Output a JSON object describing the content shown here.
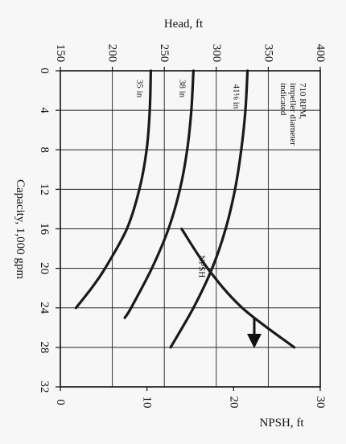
{
  "chart_data": {
    "type": "line",
    "head_axis": {
      "label": "Head, ft",
      "range": [
        150,
        400
      ],
      "ticks": [
        "150",
        "200",
        "250",
        "300",
        "350",
        "400"
      ]
    },
    "npsh_axis": {
      "label": "NPSH, ft",
      "range": [
        0,
        30
      ],
      "ticks": [
        "0",
        "10",
        "20",
        "30"
      ]
    },
    "capacity_axis": {
      "label": "Capacity, 1,000 gpm",
      "range": [
        0,
        32
      ],
      "ticks": [
        "0",
        "4",
        "8",
        "12",
        "16",
        "20",
        "24",
        "28",
        "32"
      ]
    },
    "annotation": [
      "710 RPM,",
      "impeller diameter",
      "indicated"
    ],
    "series": [
      {
        "name": "35 in",
        "axis": "head",
        "x": [
          0,
          4,
          8,
          12,
          16,
          20,
          22,
          24
        ],
        "y": [
          237,
          236,
          233,
          226,
          214,
          193,
          180,
          165
        ]
      },
      {
        "name": "38 in",
        "axis": "head",
        "x": [
          0,
          4,
          8,
          12,
          16,
          20,
          24,
          25
        ],
        "y": [
          278,
          276,
          272,
          265,
          254,
          238,
          218,
          212
        ]
      },
      {
        "name": "41⅛ in",
        "axis": "head",
        "x": [
          0,
          4,
          8,
          12,
          16,
          20,
          24,
          28
        ],
        "y": [
          330,
          328,
          324,
          318,
          309,
          296,
          278,
          256
        ]
      },
      {
        "name": "NPSH",
        "axis": "npsh",
        "x": [
          16,
          20,
          24,
          28
        ],
        "y": [
          14,
          17,
          21,
          27
        ]
      }
    ]
  }
}
